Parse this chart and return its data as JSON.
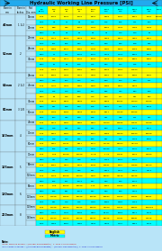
{
  "title": "Hydraulic Working Line Pressure [PSI]",
  "header_left": [
    "Bore in\nmm",
    "Bore in\nInches",
    "Rod\nDia. mm"
  ],
  "psi_top": [
    "PSI\n(BAR)",
    "500\n34",
    "750\n52",
    "1000\n69",
    "1500\n104",
    "2000\n140",
    "2500\n172",
    "3000\n207",
    "3500\n241",
    "5000\n"
  ],
  "psi_colors": [
    "C",
    "Y",
    "Y",
    "Y",
    "Y",
    "C",
    "C",
    "C",
    "C",
    "C"
  ],
  "bore_groups": [
    {
      "bore": "40mm",
      "bore_in": "1 1/2",
      "rows": [
        {
          "rod": "18mm",
          "push": true,
          "vals": [
            "1.5k",
            "1009",
            "1509",
            "2009",
            "3009",
            "4018",
            "5020",
            "6027",
            "7034",
            "10049"
          ]
        },
        {
          "rod": "",
          "push": false,
          "vals": [
            "Max.",
            "41",
            "71",
            "85",
            "115",
            "145",
            "155",
            "711",
            "754",
            ""
          ]
        },
        {
          "rod": "25mm",
          "push": true,
          "vals": [
            "1.0k",
            "848",
            "949",
            "1096",
            "1418",
            "1896",
            "2443",
            "2463",
            "2443",
            ""
          ]
        },
        {
          "rod": "",
          "push": false,
          "vals": [
            "45cc",
            "26",
            "42",
            "38",
            "79",
            "41",
            "113",
            "140",
            "48",
            ""
          ]
        }
      ]
    },
    {
      "bore": "50mm",
      "bore_in": "2",
      "rows": [
        {
          "rod": "22mm",
          "push": true,
          "vals": [
            "1.5k",
            "1471",
            "2009",
            "2948",
            "3802",
            "4419",
            "5811",
            "7365",
            "8827",
            ""
          ]
        },
        {
          "rod": "",
          "push": false,
          "vals": [
            "Max.",
            "101",
            "156",
            "790",
            "754",
            "889",
            "409",
            "508",
            "595",
            ""
          ]
        },
        {
          "rod": "28mm",
          "push": true,
          "vals": [
            "1.0k",
            "1384",
            "1640",
            "1850",
            "1744",
            "3391",
            "4819",
            "5668",
            "8582",
            ""
          ]
        },
        {
          "rod": "",
          "push": false,
          "vals": [
            "45cc",
            "11",
            "117",
            "1044",
            "1005",
            "3348",
            "1139",
            "2815",
            "4880",
            ""
          ]
        },
        {
          "rod": "35mm",
          "push": true,
          "vals": [
            "1.0k",
            "711",
            "1171",
            "1044",
            "1005",
            "3348",
            "3348",
            "2815",
            "4880",
            ""
          ]
        },
        {
          "rod": "",
          "push": false,
          "vals": [
            "45cc",
            "54",
            "81",
            "108",
            "175",
            "803",
            "174",
            "275",
            "104",
            ""
          ]
        },
        {
          "rod": "",
          "push": true,
          "vals": [
            "1.5k",
            "1413",
            "2066",
            "2655",
            "4086",
            "6038",
            "7688",
            "11860",
            "",
            ""
          ]
        }
      ]
    },
    {
      "bore": "63mm",
      "bore_in": "2 1/2",
      "rows": [
        {
          "rod": "28mm",
          "push": true,
          "vals": [
            "1.5k",
            "1864",
            "2498",
            "3330",
            "4194",
            "4897",
            "6661",
            "8325",
            "9991",
            ""
          ]
        },
        {
          "rod": "",
          "push": false,
          "vals": [
            "45cc",
            "136",
            "204",
            "272",
            "240",
            "609",
            "543",
            "183",
            "141",
            ""
          ]
        },
        {
          "rod": "45mm",
          "push": true,
          "vals": [
            "1.0k",
            "1741",
            "2498",
            "3050",
            "3050",
            "3883",
            "3690",
            "5849",
            "",
            ""
          ]
        },
        {
          "rod": "",
          "push": false,
          "vals": [
            "Max.",
            "115",
            "173",
            "250",
            "387",
            "845",
            "474",
            "534",
            "549",
            ""
          ]
        },
        {
          "rod": "",
          "push": true,
          "vals": [
            "45cc",
            "88",
            "126",
            "188",
            "210",
            "383",
            "117",
            "421",
            "304",
            ""
          ]
        }
      ]
    },
    {
      "bore": "80mm",
      "bore_in": "3 1/8",
      "rows": [
        {
          "rod": "35mm",
          "push": true,
          "vals": [
            "1.5k",
            "3008",
            "3009",
            "4578",
            "6308",
            "8008",
            "10011",
            "12014",
            "14016",
            ""
          ]
        },
        {
          "rod": "",
          "push": false,
          "vals": [
            "45cc",
            "301",
            "548",
            "480",
            "578",
            "4595",
            "117",
            "1154",
            "1008",
            ""
          ]
        },
        {
          "rod": "50mm",
          "push": true,
          "vals": [
            "1.0k",
            "1228",
            "2558",
            "4578",
            "4578",
            "8417",
            "11196",
            "20025",
            "",
            ""
          ]
        },
        {
          "rod": "",
          "push": false,
          "vals": [
            "Max.",
            "154",
            "373",
            "198",
            "388",
            "441",
            "478",
            "171",
            "377",
            ""
          ]
        }
      ]
    },
    {
      "bore": "100mm",
      "bore_in": "4",
      "rows": [
        {
          "rod": "45mm",
          "push": true,
          "vals": [
            "1.5k",
            "6274",
            "8962",
            "8762",
            "8057",
            "11023",
            "13825",
            "21871",
            "24048",
            ""
          ]
        },
        {
          "rod": "",
          "push": false,
          "vals": [
            "45cc",
            "248",
            "455",
            "402",
            "794",
            "900",
            "1957",
            "1508",
            "1511",
            ""
          ]
        },
        {
          "rod": "70mm",
          "push": true,
          "vals": [
            "1.0k",
            "4016",
            "4855",
            "4857",
            "6957",
            "9983",
            "13883",
            "15863",
            "19868",
            ""
          ]
        },
        {
          "rod": "",
          "push": false,
          "vals": [
            "Max.",
            "228",
            "243",
            "806",
            "609",
            "361",
            "411",
            "1138",
            "1082",
            ""
          ]
        },
        {
          "rod": "80mm",
          "push": true,
          "vals": [
            "1.5k",
            "7960",
            "11961",
            "5817",
            "5172",
            "21726",
            "32044",
            "47+02",
            "",
            ""
          ]
        },
        {
          "rod": "",
          "push": false,
          "vals": [
            "45cc",
            "545",
            "818",
            "1090",
            "1304",
            "10036",
            "7711",
            "5070",
            "1011",
            ""
          ]
        }
      ]
    },
    {
      "bore": "125mm",
      "bore_in": "5",
      "rows": [
        {
          "rod": "70mm",
          "push": true,
          "vals": [
            "1.5k",
            "1.5k",
            "50758",
            "50978",
            "80 B",
            "1 14",
            "14891",
            "1949",
            "43919",
            ""
          ]
        },
        {
          "rod": "",
          "push": false,
          "vals": [
            "45cc",
            "411",
            "613",
            "678",
            "1478",
            "1414",
            "2507",
            "2626",
            "",
            ""
          ]
        },
        {
          "rod": "90mm",
          "push": true,
          "vals": [
            "1.0k",
            "6887",
            "7321",
            "8776",
            "103B",
            "13891",
            "1960",
            "27836",
            "38223",
            ""
          ]
        },
        {
          "rod": "",
          "push": false,
          "vals": [
            "Max.",
            "131",
            "506",
            "676",
            "841",
            "8711",
            "1346",
            "1846",
            "3773",
            ""
          ]
        },
        {
          "rod": "100mm",
          "push": true,
          "vals": [
            "1.5k",
            "7508",
            "15018",
            "16019",
            "7961",
            "30037",
            "37546",
            "40055",
            "",
            ""
          ]
        },
        {
          "rod": "",
          "push": false,
          "vals": [
            "45cc",
            "155",
            "161",
            "1073",
            "797",
            "793",
            "990",
            "1546",
            "",
            ""
          ]
        }
      ]
    },
    {
      "bore": "160mm",
      "bore_in": "6",
      "rows": [
        {
          "rod": "90mm",
          "push": true,
          "vals": [
            "1.5k",
            "1.5k",
            "10012",
            "19958",
            "1.7k",
            "1960",
            "14884",
            "4011",
            "",
            ""
          ]
        },
        {
          "rod": "",
          "push": false,
          "vals": [
            "45cc",
            "185",
            "281",
            "1073",
            "797",
            "793",
            "990",
            "1349",
            "",
            ""
          ]
        },
        {
          "rod": "110mm",
          "push": true,
          "vals": [
            "1.0k",
            "11158",
            "14884",
            "19958",
            "19958",
            "19884",
            "14884",
            "50811",
            "60881",
            ""
          ]
        },
        {
          "rod": "",
          "push": false,
          "vals": [
            "Max.",
            "461",
            "749",
            "716",
            "1156",
            "1881",
            "1384",
            "1113",
            "",
            ""
          ]
        }
      ]
    },
    {
      "bore": "200mm",
      "bore_in": "8",
      "rows": [
        {
          "rod": "110mm",
          "push": true,
          "vals": [
            "1.5k",
            "11008",
            "19654",
            "20005",
            "40010",
            "44450",
            "14871",
            "60811",
            "108008",
            ""
          ]
        },
        {
          "rod": "",
          "push": false,
          "vals": [
            "45cc",
            "1161",
            "1741",
            "2028",
            "3480",
            "34.76",
            "1688",
            "8471",
            "7048",
            ""
          ]
        },
        {
          "rod": "140mm",
          "push": true,
          "vals": [
            "1.0k",
            "17003",
            "17604",
            "26005",
            "32007",
            "30005",
            "17041",
            "60831",
            "21515",
            ""
          ]
        },
        {
          "rod": "",
          "push": false,
          "vals": [
            "Max.",
            "1388",
            "1086",
            "1384",
            "2378",
            "2378",
            "1737",
            "4551",
            "7048",
            ""
          ]
        }
      ]
    }
  ],
  "YELLOW": "#FFFF00",
  "CYAN": "#00FFFF",
  "LIGHT_BLUE": "#B8E4F8",
  "HEADER_BLUE": "#44AADD",
  "TITLE_BLUE": "#22AAEE",
  "GREEN_Y": "#CCFF33",
  "GREEN_C": "#00DDCC"
}
